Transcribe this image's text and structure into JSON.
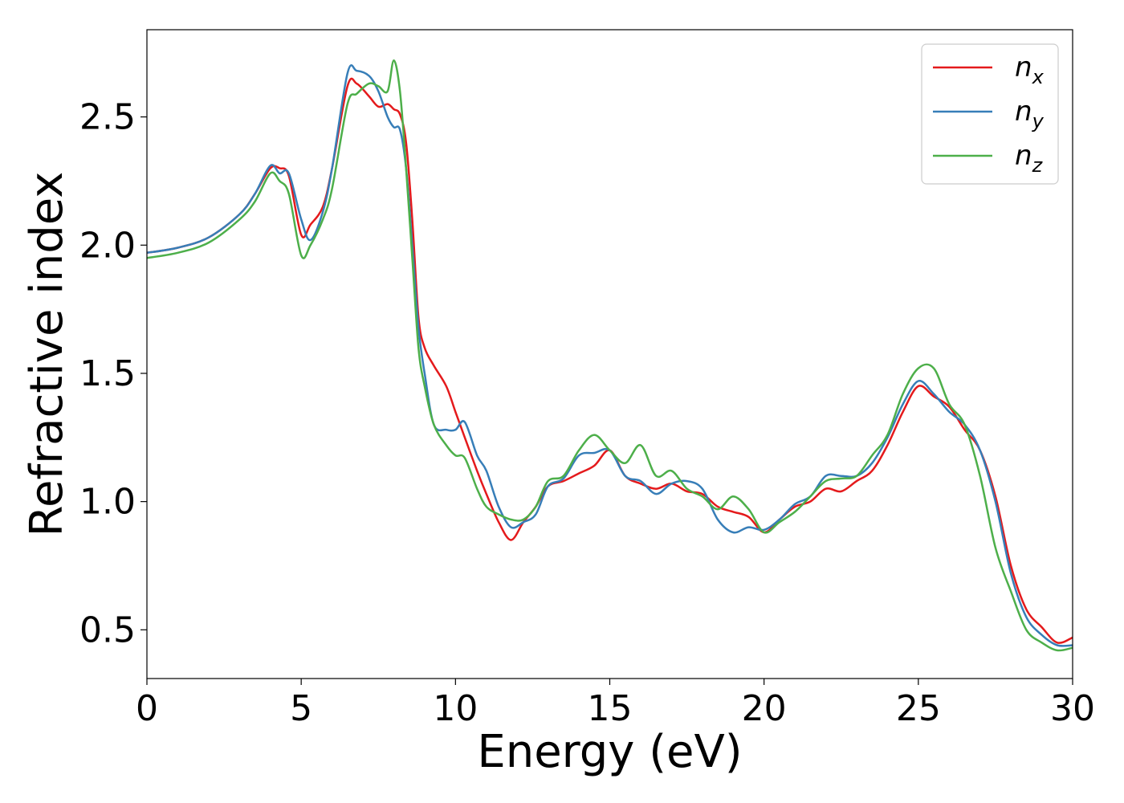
{
  "chart_data": {
    "type": "line",
    "xlabel": "Energy (eV)",
    "ylabel": "Refractive index",
    "xlim": [
      0,
      30
    ],
    "ylim": [
      0.31,
      2.84
    ],
    "xticks": [
      0,
      5,
      10,
      15,
      20,
      25,
      30
    ],
    "xtick_labels": [
      "0",
      "5",
      "10",
      "15",
      "20",
      "25",
      "30"
    ],
    "yticks": [
      0.5,
      1.0,
      1.5,
      2.0,
      2.5
    ],
    "ytick_labels": [
      "0.5",
      "1.0",
      "1.5",
      "2.0",
      "2.5"
    ],
    "grid": false,
    "legend_position": "top-right",
    "series": [
      {
        "name": "n",
        "subscript": "x",
        "color": "#e41a1c",
        "x": [
          0,
          1,
          2,
          3,
          3.5,
          4,
          4.3,
          4.6,
          5.0,
          5.3,
          5.7,
          6.0,
          6.5,
          6.8,
          7.2,
          7.5,
          7.8,
          8.0,
          8.2,
          8.4,
          8.6,
          8.8,
          9.0,
          9.3,
          9.7,
          10.0,
          10.3,
          10.7,
          11.0,
          11.4,
          11.8,
          12.2,
          12.6,
          13.0,
          13.5,
          14.0,
          14.5,
          15.0,
          15.5,
          16.0,
          16.5,
          17.0,
          17.5,
          18.0,
          18.5,
          19.0,
          19.5,
          20.0,
          20.5,
          21.0,
          21.5,
          22.0,
          22.5,
          23.0,
          23.5,
          24.0,
          24.5,
          25.0,
          25.5,
          26.0,
          26.5,
          27.0,
          27.5,
          28.0,
          28.5,
          29.0,
          29.5,
          30.0
        ],
        "y": [
          1.97,
          1.99,
          2.03,
          2.12,
          2.2,
          2.3,
          2.3,
          2.27,
          2.04,
          2.08,
          2.15,
          2.3,
          2.62,
          2.63,
          2.58,
          2.54,
          2.55,
          2.53,
          2.51,
          2.4,
          2.1,
          1.72,
          1.6,
          1.53,
          1.45,
          1.35,
          1.25,
          1.12,
          1.03,
          0.92,
          0.85,
          0.92,
          0.98,
          1.06,
          1.08,
          1.11,
          1.14,
          1.2,
          1.1,
          1.07,
          1.05,
          1.07,
          1.04,
          1.03,
          0.98,
          0.96,
          0.94,
          0.88,
          0.93,
          0.98,
          1.0,
          1.05,
          1.04,
          1.08,
          1.12,
          1.22,
          1.35,
          1.45,
          1.41,
          1.37,
          1.28,
          1.2,
          1.02,
          0.75,
          0.58,
          0.51,
          0.45,
          0.47
        ]
      },
      {
        "name": "n",
        "subscript": "y",
        "color": "#377eb8",
        "x": [
          0,
          1,
          2,
          3,
          3.5,
          4,
          4.3,
          4.6,
          5.0,
          5.3,
          5.7,
          6.0,
          6.5,
          6.8,
          7.2,
          7.5,
          7.8,
          8.0,
          8.2,
          8.4,
          8.6,
          8.8,
          9.0,
          9.3,
          9.7,
          10.0,
          10.3,
          10.7,
          11.0,
          11.4,
          11.8,
          12.2,
          12.6,
          13.0,
          13.5,
          14.0,
          14.5,
          15.0,
          15.5,
          16.0,
          16.5,
          17.0,
          17.5,
          18.0,
          18.5,
          19.0,
          19.5,
          20.0,
          20.5,
          21.0,
          21.5,
          22.0,
          22.5,
          23.0,
          23.5,
          24.0,
          24.5,
          25.0,
          25.5,
          26.0,
          26.5,
          27.0,
          27.5,
          28.0,
          28.5,
          29.0,
          29.5,
          30.0
        ],
        "y": [
          1.97,
          1.99,
          2.03,
          2.12,
          2.2,
          2.31,
          2.28,
          2.28,
          2.1,
          2.02,
          2.13,
          2.3,
          2.67,
          2.68,
          2.66,
          2.6,
          2.5,
          2.46,
          2.45,
          2.3,
          2.0,
          1.68,
          1.5,
          1.3,
          1.28,
          1.28,
          1.31,
          1.18,
          1.12,
          0.98,
          0.9,
          0.92,
          0.95,
          1.06,
          1.09,
          1.18,
          1.19,
          1.2,
          1.1,
          1.08,
          1.03,
          1.07,
          1.08,
          1.05,
          0.93,
          0.88,
          0.9,
          0.89,
          0.93,
          0.99,
          1.02,
          1.1,
          1.1,
          1.1,
          1.15,
          1.25,
          1.38,
          1.47,
          1.42,
          1.35,
          1.3,
          1.2,
          1.0,
          0.72,
          0.55,
          0.48,
          0.44,
          0.44
        ]
      },
      {
        "name": "n",
        "subscript": "z",
        "color": "#4daf4a",
        "x": [
          0,
          1,
          2,
          3,
          3.5,
          4,
          4.3,
          4.6,
          5.0,
          5.3,
          5.7,
          6.0,
          6.5,
          6.8,
          7.2,
          7.5,
          7.8,
          8.0,
          8.2,
          8.4,
          8.6,
          8.8,
          9.0,
          9.3,
          9.7,
          10.0,
          10.3,
          10.7,
          11.0,
          11.4,
          11.8,
          12.2,
          12.6,
          13.0,
          13.5,
          14.0,
          14.5,
          15.0,
          15.5,
          16.0,
          16.5,
          17.0,
          17.5,
          18.0,
          18.5,
          19.0,
          19.5,
          20.0,
          20.5,
          21.0,
          21.5,
          22.0,
          22.5,
          23.0,
          23.5,
          24.0,
          24.5,
          25.0,
          25.5,
          26.0,
          26.5,
          27.0,
          27.5,
          28.0,
          28.5,
          29.0,
          29.5,
          30.0
        ],
        "y": [
          1.95,
          1.97,
          2.01,
          2.1,
          2.17,
          2.28,
          2.25,
          2.2,
          1.96,
          2.0,
          2.1,
          2.22,
          2.55,
          2.59,
          2.63,
          2.62,
          2.6,
          2.72,
          2.6,
          2.3,
          1.95,
          1.6,
          1.45,
          1.3,
          1.22,
          1.18,
          1.17,
          1.05,
          0.98,
          0.95,
          0.93,
          0.93,
          0.98,
          1.08,
          1.1,
          1.2,
          1.26,
          1.2,
          1.15,
          1.22,
          1.1,
          1.12,
          1.05,
          1.02,
          0.97,
          1.02,
          0.97,
          0.88,
          0.92,
          0.96,
          1.02,
          1.08,
          1.09,
          1.1,
          1.18,
          1.26,
          1.42,
          1.52,
          1.52,
          1.38,
          1.3,
          1.1,
          0.82,
          0.65,
          0.5,
          0.45,
          0.42,
          0.43
        ]
      }
    ]
  }
}
